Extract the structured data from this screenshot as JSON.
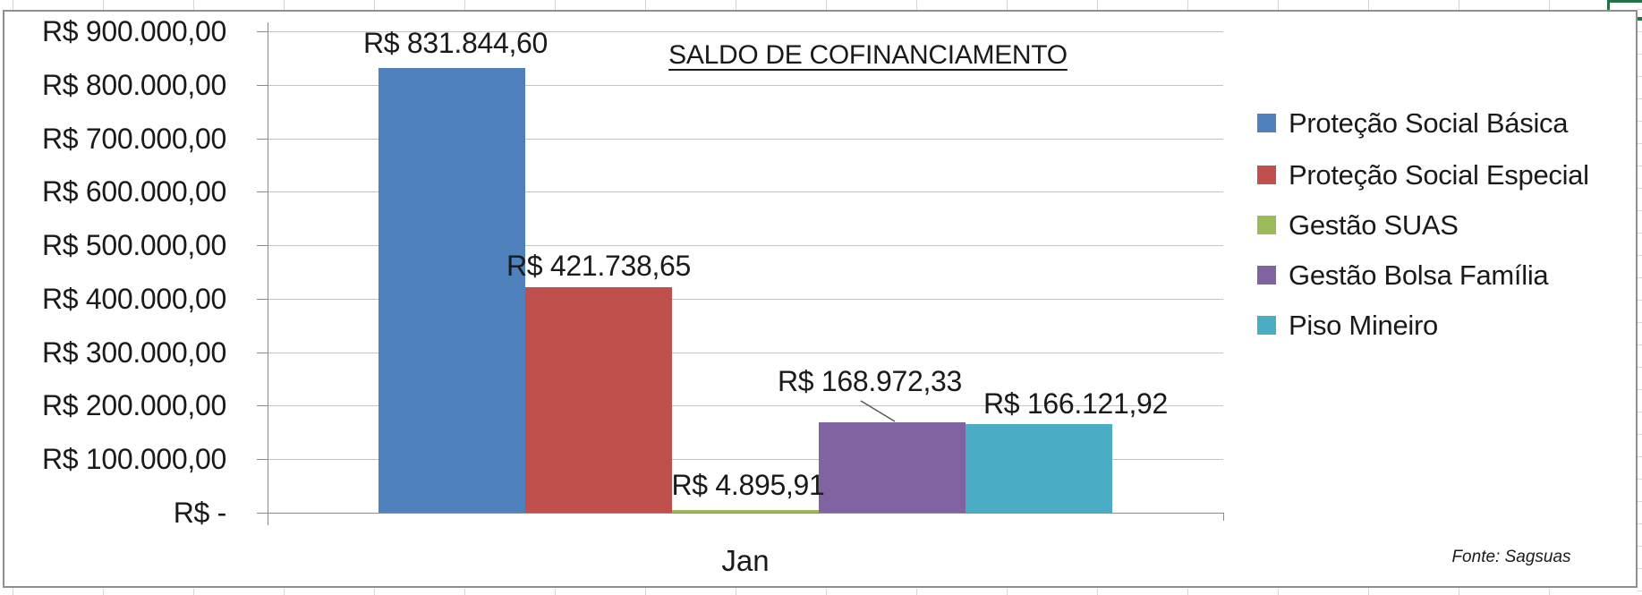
{
  "chart_data": {
    "type": "bar",
    "title": "SALDO DE COFINANCIAMENTO",
    "categories": [
      "Jan"
    ],
    "series": [
      {
        "name": "Proteção Social Básica",
        "value": 831844.6,
        "label": "R$ 831.844,60",
        "color": "#4F81BD"
      },
      {
        "name": "Proteção Social Especial",
        "value": 421738.65,
        "label": "R$ 421.738,65",
        "color": "#C0504D"
      },
      {
        "name": "Gestão SUAS",
        "value": 4895.91,
        "label": "R$ 4.895,91",
        "color": "#9BBB59"
      },
      {
        "name": "Gestão Bolsa Família",
        "value": 168972.33,
        "label": "R$ 168.972,33",
        "color": "#8064A2"
      },
      {
        "name": "Piso Mineiro",
        "value": 166121.92,
        "label": "R$ 166.121,92",
        "color": "#4BACC6"
      }
    ],
    "y_ticks": [
      "R$ 900.000,00",
      "R$ 800.000,00",
      "R$ 700.000,00",
      "R$ 600.000,00",
      "R$ 500.000,00",
      "R$ 400.000,00",
      "R$ 300.000,00",
      "R$ 200.000,00",
      "R$ 100.000,00",
      "R$ -"
    ],
    "ylim": [
      0,
      900000
    ],
    "grid": true,
    "legend_position": "right",
    "source": "Fonte: Sagsuas",
    "selection_color": "#217346"
  }
}
